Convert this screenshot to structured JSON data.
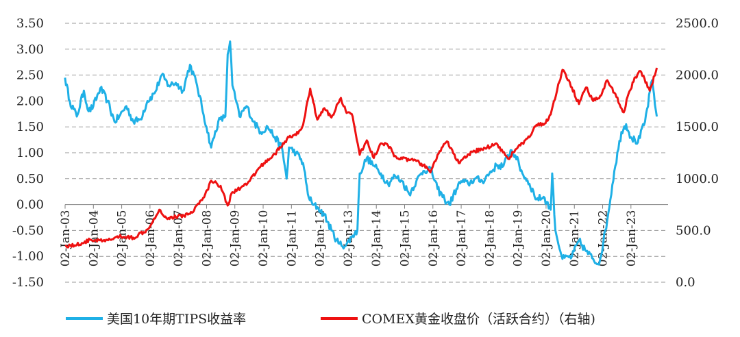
{
  "chart_data": {
    "type": "line",
    "title": "",
    "y_left": {
      "label": "",
      "ylim": [
        -1.5,
        3.5
      ],
      "ticks": [
        "3.50",
        "3.00",
        "2.50",
        "2.00",
        "1.50",
        "1.00",
        "0.50",
        "0.00",
        "-0.50",
        "-1.00",
        "-1.50"
      ]
    },
    "y_right": {
      "label": "",
      "ylim": [
        0,
        2500
      ],
      "ticks": [
        "2500.0",
        "2000.0",
        "1500.0",
        "1000.0",
        "500.0",
        "0.0"
      ]
    },
    "x_ticks": [
      "02-Jan-03",
      "02-Jan-04",
      "02-Jan-05",
      "02-Jan-06",
      "02-Jan-07",
      "02-Jan-08",
      "02-Jan-09",
      "02-Jan-10",
      "02-Jan-11",
      "02-Jan-12",
      "02-Jan-13",
      "02-Jan-14",
      "02-Jan-15",
      "02-Jan-16",
      "02-Jan-17",
      "02-Jan-18",
      "02-Jan-19",
      "02-Jan-20",
      "02-Jan-21",
      "02-Jan-22",
      "02-Jan-23"
    ],
    "grid": true,
    "legend_position": "bottom",
    "series": [
      {
        "name": "美国10年期TIPS收益率",
        "axis": "left",
        "color": "#1fb0e6",
        "points": [
          [
            "2003-01",
            2.45
          ],
          [
            "2003-03",
            2.0
          ],
          [
            "2003-06",
            1.7
          ],
          [
            "2003-09",
            2.2
          ],
          [
            "2003-11",
            1.8
          ],
          [
            "2004-01",
            1.9
          ],
          [
            "2004-04",
            2.25
          ],
          [
            "2004-07",
            2.0
          ],
          [
            "2004-10",
            1.6
          ],
          [
            "2004-12",
            1.7
          ],
          [
            "2005-03",
            1.9
          ],
          [
            "2005-06",
            1.6
          ],
          [
            "2005-09",
            1.65
          ],
          [
            "2005-12",
            2.0
          ],
          [
            "2006-03",
            2.15
          ],
          [
            "2006-06",
            2.5
          ],
          [
            "2006-09",
            2.3
          ],
          [
            "2006-12",
            2.35
          ],
          [
            "2007-03",
            2.2
          ],
          [
            "2007-06",
            2.7
          ],
          [
            "2007-09",
            2.3
          ],
          [
            "2007-11",
            1.9
          ],
          [
            "2008-01",
            1.5
          ],
          [
            "2008-03",
            1.1
          ],
          [
            "2008-06",
            1.6
          ],
          [
            "2008-09",
            1.7
          ],
          [
            "2008-10",
            2.9
          ],
          [
            "2008-11",
            3.15
          ],
          [
            "2008-12",
            2.3
          ],
          [
            "2009-03",
            1.7
          ],
          [
            "2009-06",
            1.9
          ],
          [
            "2009-09",
            1.6
          ],
          [
            "2009-12",
            1.4
          ],
          [
            "2010-03",
            1.5
          ],
          [
            "2010-06",
            1.3
          ],
          [
            "2010-09",
            1.1
          ],
          [
            "2010-11",
            0.5
          ],
          [
            "2010-12",
            1.1
          ],
          [
            "2011-03",
            1.0
          ],
          [
            "2011-06",
            0.8
          ],
          [
            "2011-08",
            0.2
          ],
          [
            "2011-10",
            0.0
          ],
          [
            "2011-12",
            -0.05
          ],
          [
            "2012-03",
            -0.2
          ],
          [
            "2012-06",
            -0.5
          ],
          [
            "2012-09",
            -0.75
          ],
          [
            "2012-12",
            -0.8
          ],
          [
            "2013-03",
            -0.6
          ],
          [
            "2013-05",
            -0.5
          ],
          [
            "2013-06",
            0.6
          ],
          [
            "2013-09",
            0.9
          ],
          [
            "2013-12",
            0.75
          ],
          [
            "2014-03",
            0.6
          ],
          [
            "2014-06",
            0.4
          ],
          [
            "2014-09",
            0.55
          ],
          [
            "2014-12",
            0.45
          ],
          [
            "2015-03",
            0.2
          ],
          [
            "2015-06",
            0.45
          ],
          [
            "2015-09",
            0.65
          ],
          [
            "2015-12",
            0.7
          ],
          [
            "2016-03",
            0.3
          ],
          [
            "2016-06",
            0.1
          ],
          [
            "2016-08",
            0.0
          ],
          [
            "2016-11",
            0.3
          ],
          [
            "2017-01",
            0.45
          ],
          [
            "2017-04",
            0.4
          ],
          [
            "2017-07",
            0.5
          ],
          [
            "2017-10",
            0.45
          ],
          [
            "2018-01",
            0.6
          ],
          [
            "2018-04",
            0.75
          ],
          [
            "2018-07",
            0.75
          ],
          [
            "2018-10",
            1.05
          ],
          [
            "2018-12",
            0.95
          ],
          [
            "2019-03",
            0.6
          ],
          [
            "2019-06",
            0.4
          ],
          [
            "2019-09",
            0.1
          ],
          [
            "2019-12",
            0.15
          ],
          [
            "2020-03",
            -0.1
          ],
          [
            "2020-03-20",
            0.6
          ],
          [
            "2020-05",
            -0.5
          ],
          [
            "2020-08",
            -1.05
          ],
          [
            "2020-12",
            -1.0
          ],
          [
            "2021-03",
            -0.7
          ],
          [
            "2021-06",
            -0.9
          ],
          [
            "2021-09",
            -1.05
          ],
          [
            "2021-11",
            -1.15
          ],
          [
            "2021-12",
            -1.05
          ],
          [
            "2022-03",
            -0.3
          ],
          [
            "2022-06",
            0.65
          ],
          [
            "2022-09",
            1.4
          ],
          [
            "2022-11",
            1.55
          ],
          [
            "2023-01",
            1.3
          ],
          [
            "2023-04",
            1.2
          ],
          [
            "2023-07",
            1.6
          ],
          [
            "2023-10",
            2.4
          ],
          [
            "2023-12",
            1.7
          ]
        ]
      },
      {
        "name": "COMEX黄金收盘价（活跃合约）（右轴)",
        "axis": "right",
        "color": "#ee1111",
        "points": [
          [
            "2003-01",
            350
          ],
          [
            "2003-06",
            360
          ],
          [
            "2003-12",
            410
          ],
          [
            "2004-06",
            395
          ],
          [
            "2004-12",
            440
          ],
          [
            "2005-06",
            430
          ],
          [
            "2005-12",
            510
          ],
          [
            "2006-05",
            700
          ],
          [
            "2006-08",
            620
          ],
          [
            "2006-12",
            630
          ],
          [
            "2007-06",
            660
          ],
          [
            "2007-12",
            820
          ],
          [
            "2008-03",
            980
          ],
          [
            "2008-07",
            930
          ],
          [
            "2008-10",
            740
          ],
          [
            "2008-12",
            870
          ],
          [
            "2009-06",
            940
          ],
          [
            "2009-12",
            1120
          ],
          [
            "2010-06",
            1240
          ],
          [
            "2010-12",
            1400
          ],
          [
            "2011-03",
            1420
          ],
          [
            "2011-06",
            1520
          ],
          [
            "2011-09",
            1870
          ],
          [
            "2011-12",
            1570
          ],
          [
            "2012-03",
            1680
          ],
          [
            "2012-06",
            1590
          ],
          [
            "2012-10",
            1780
          ],
          [
            "2012-12",
            1660
          ],
          [
            "2013-03",
            1600
          ],
          [
            "2013-06",
            1230
          ],
          [
            "2013-09",
            1370
          ],
          [
            "2013-12",
            1200
          ],
          [
            "2014-03",
            1340
          ],
          [
            "2014-06",
            1320
          ],
          [
            "2014-09",
            1220
          ],
          [
            "2014-12",
            1190
          ],
          [
            "2015-03",
            1180
          ],
          [
            "2015-06",
            1170
          ],
          [
            "2015-09",
            1130
          ],
          [
            "2015-12",
            1060
          ],
          [
            "2016-03",
            1230
          ],
          [
            "2016-07",
            1360
          ],
          [
            "2016-12",
            1150
          ],
          [
            "2017-06",
            1260
          ],
          [
            "2017-12",
            1300
          ],
          [
            "2018-04",
            1340
          ],
          [
            "2018-09",
            1190
          ],
          [
            "2018-12",
            1280
          ],
          [
            "2019-06",
            1400
          ],
          [
            "2019-09",
            1520
          ],
          [
            "2019-12",
            1520
          ],
          [
            "2020-03",
            1620
          ],
          [
            "2020-08",
            2050
          ],
          [
            "2020-12",
            1880
          ],
          [
            "2021-03",
            1720
          ],
          [
            "2021-06",
            1880
          ],
          [
            "2021-09",
            1750
          ],
          [
            "2021-12",
            1800
          ],
          [
            "2022-03",
            1950
          ],
          [
            "2022-06",
            1830
          ],
          [
            "2022-10",
            1640
          ],
          [
            "2022-12",
            1820
          ],
          [
            "2023-03",
            1980
          ],
          [
            "2023-05",
            2040
          ],
          [
            "2023-09",
            1850
          ],
          [
            "2023-12",
            2070
          ]
        ]
      }
    ]
  }
}
